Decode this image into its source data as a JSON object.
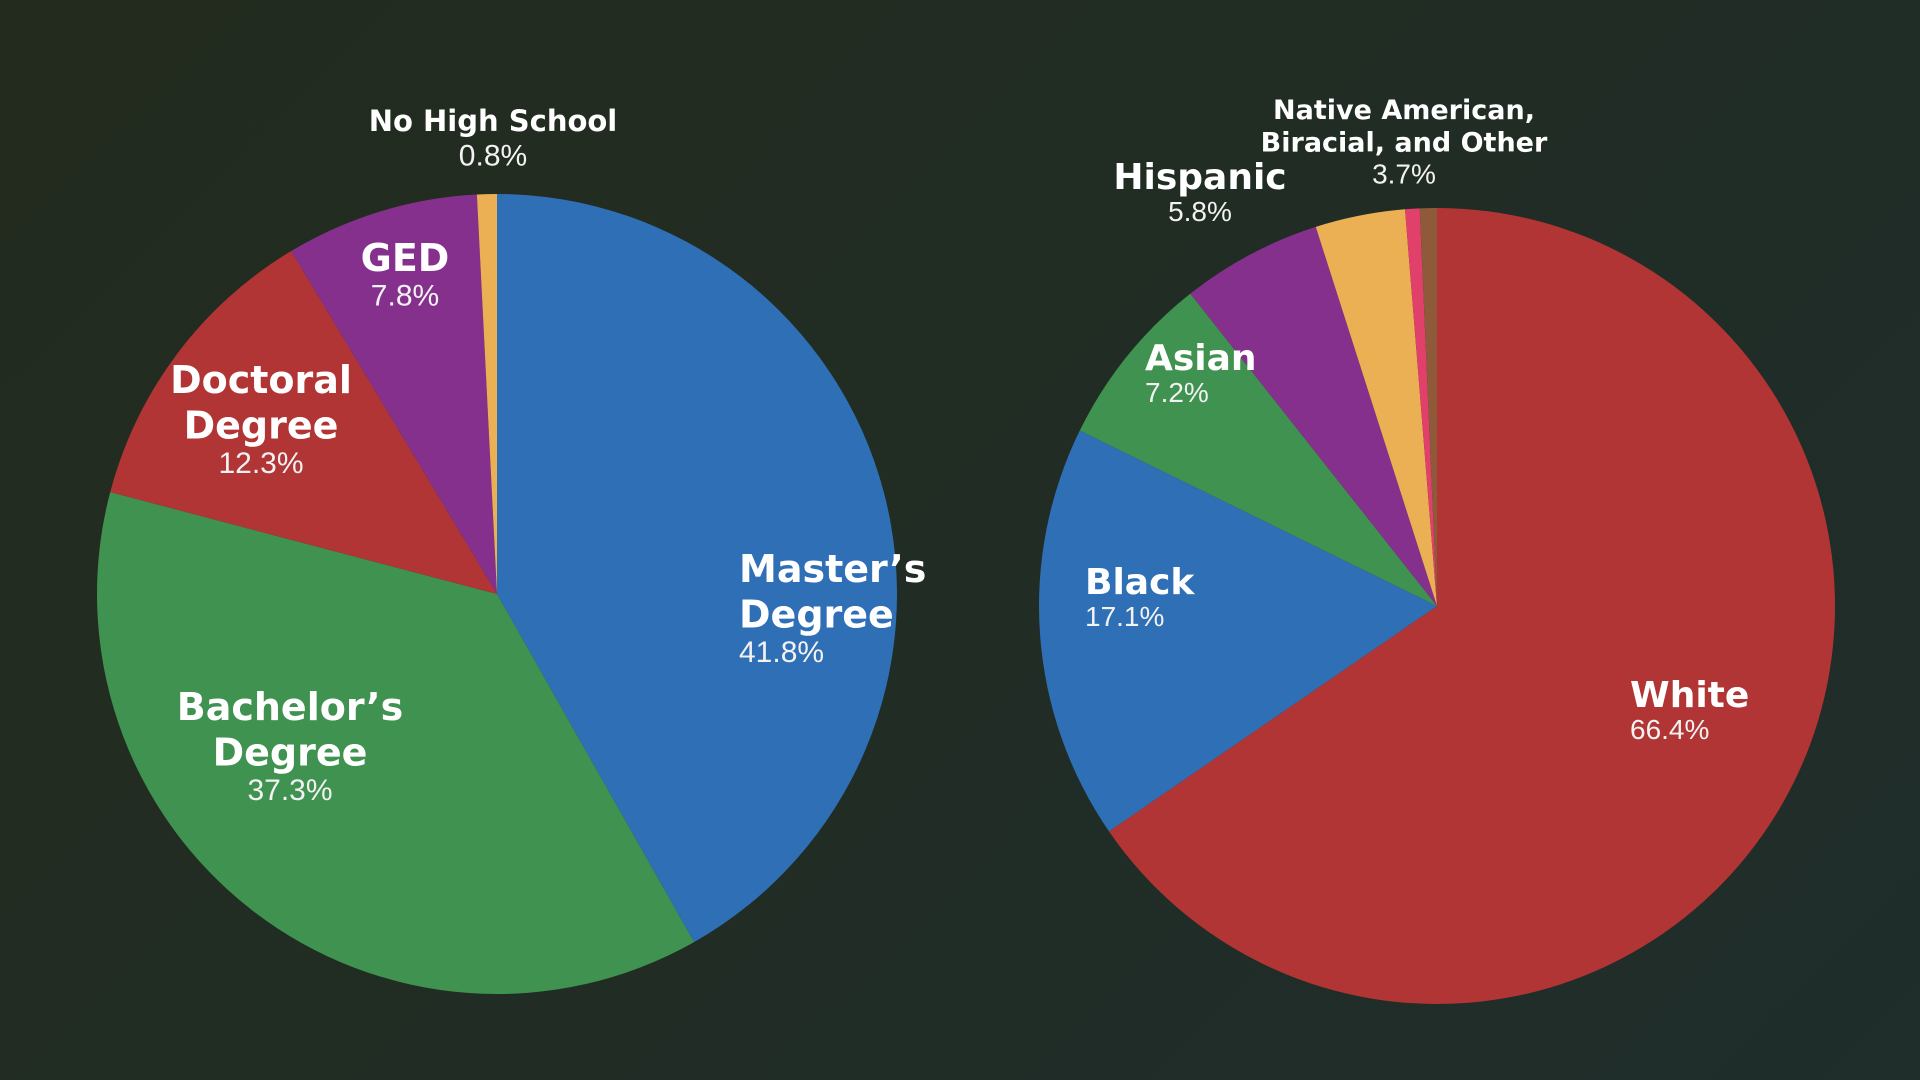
{
  "chart_data": [
    {
      "type": "pie",
      "title": "",
      "slices": [
        {
          "label": "Master's Degree",
          "name_lines": [
            "Master’s",
            "Degree"
          ],
          "value": 41.8,
          "display": "41.8%",
          "color": "#2f6fb6"
        },
        {
          "label": "Bachelor's Degree",
          "name_lines": [
            "Bachelor’s",
            "Degree"
          ],
          "value": 37.3,
          "display": "37.3%",
          "color": "#3f924f"
        },
        {
          "label": "Doctoral Degree",
          "name_lines": [
            "Doctoral",
            "Degree"
          ],
          "value": 12.3,
          "display": "12.3%",
          "color": "#b23535"
        },
        {
          "label": "GED",
          "name_lines": [
            "GED"
          ],
          "value": 7.8,
          "display": "7.8%",
          "color": "#86308e"
        },
        {
          "label": "No High School",
          "name_lines": [
            "No High School"
          ],
          "value": 0.8,
          "display": "0.8%",
          "color": "#ebb053"
        }
      ]
    },
    {
      "type": "pie",
      "title": "",
      "slices": [
        {
          "label": "White",
          "name_lines": [
            "White"
          ],
          "value": 66.4,
          "display": "66.4%",
          "color": "#b23535"
        },
        {
          "label": "Black",
          "name_lines": [
            "Black"
          ],
          "value": 17.1,
          "display": "17.1%",
          "color": "#2f6fb6"
        },
        {
          "label": "Asian",
          "name_lines": [
            "Asian"
          ],
          "value": 7.2,
          "display": "7.2%",
          "color": "#3f924f"
        },
        {
          "label": "Hispanic",
          "name_lines": [
            "Hispanic"
          ],
          "value": 5.8,
          "display": "5.8%",
          "color": "#86308e"
        },
        {
          "label": "Native American, Biracial, and Other",
          "name_lines": [
            "Native American,",
            "Biracial, and Other"
          ],
          "value": 3.7,
          "display": "3.7%",
          "color": "#ebb053"
        },
        {
          "label": "",
          "name_lines": [],
          "value": 0.6,
          "display": "",
          "color": "#e0406a"
        },
        {
          "label": "",
          "name_lines": [],
          "value": 0.7,
          "display": "",
          "color": "#8e5a3a"
        }
      ]
    }
  ]
}
